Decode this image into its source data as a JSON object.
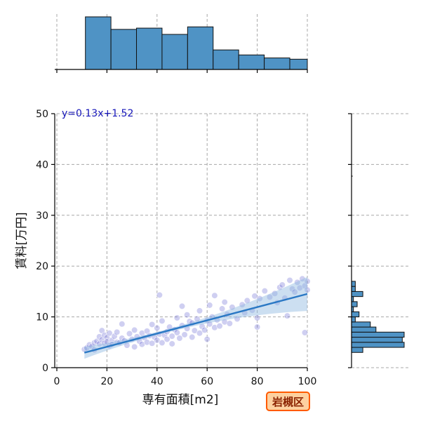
{
  "chart_data": {
    "type": "scatter",
    "xlabel": "専有面積[m2]",
    "ylabel": "賃料[万円]",
    "xlim": [
      0,
      100
    ],
    "ylim": [
      0,
      50
    ],
    "x_ticks": [
      0,
      20,
      40,
      60,
      80,
      100
    ],
    "y_ticks": [
      0,
      10,
      20,
      30,
      40,
      50
    ],
    "grid": true,
    "regression": {
      "equation": "y=0.13x+1.52",
      "slope": 0.13,
      "intercept": 1.52,
      "x_range": [
        11,
        100
      ],
      "confidence_band": true
    },
    "area_label": "岩槻区",
    "marginal_x_histogram": {
      "bin_edges": [
        11.4,
        21.6,
        31.8,
        42.0,
        52.2,
        62.4,
        72.6,
        82.8,
        93.0,
        100
      ],
      "counts": [
        21,
        16,
        16.5,
        14,
        17,
        7.8,
        5.8,
        4.6,
        4.1
      ]
    },
    "marginal_y_histogram": {
      "bin_edges": [
        3,
        4,
        5,
        6,
        7,
        8,
        9,
        10,
        11,
        12,
        13,
        14,
        15,
        16,
        17,
        18
      ],
      "counts": [
        6,
        28,
        27,
        28,
        13,
        10,
        2,
        4,
        1,
        3,
        1,
        6,
        2,
        2,
        0
      ]
    },
    "points": [
      {
        "x": 11,
        "y": 3.6
      },
      {
        "x": 12,
        "y": 3.9
      },
      {
        "x": 13,
        "y": 4.5
      },
      {
        "x": 14,
        "y": 4.2
      },
      {
        "x": 15,
        "y": 4.9
      },
      {
        "x": 15,
        "y": 3.5
      },
      {
        "x": 16,
        "y": 5.2
      },
      {
        "x": 17,
        "y": 4.7
      },
      {
        "x": 17,
        "y": 6.1
      },
      {
        "x": 18,
        "y": 5.5
      },
      {
        "x": 18,
        "y": 7.3
      },
      {
        "x": 19,
        "y": 6.4
      },
      {
        "x": 19,
        "y": 4.8
      },
      {
        "x": 20,
        "y": 5.9
      },
      {
        "x": 20,
        "y": 5.1
      },
      {
        "x": 21,
        "y": 6.8
      },
      {
        "x": 21,
        "y": 4.3
      },
      {
        "x": 22,
        "y": 5.4
      },
      {
        "x": 22,
        "y": 4.6
      },
      {
        "x": 23,
        "y": 6.2
      },
      {
        "x": 24,
        "y": 5.0
      },
      {
        "x": 24,
        "y": 7.0
      },
      {
        "x": 25,
        "y": 4.9
      },
      {
        "x": 26,
        "y": 5.8
      },
      {
        "x": 26,
        "y": 8.6
      },
      {
        "x": 27,
        "y": 5.3
      },
      {
        "x": 28,
        "y": 4.4
      },
      {
        "x": 29,
        "y": 6.7
      },
      {
        "x": 30,
        "y": 5.6
      },
      {
        "x": 31,
        "y": 4.1
      },
      {
        "x": 31,
        "y": 7.4
      },
      {
        "x": 32,
        "y": 6.1
      },
      {
        "x": 33,
        "y": 5.2
      },
      {
        "x": 34,
        "y": 6.8
      },
      {
        "x": 34,
        "y": 4.6
      },
      {
        "x": 35,
        "y": 5.9
      },
      {
        "x": 36,
        "y": 7.2
      },
      {
        "x": 36,
        "y": 5.0
      },
      {
        "x": 37,
        "y": 6.3
      },
      {
        "x": 38,
        "y": 4.8
      },
      {
        "x": 38,
        "y": 8.5
      },
      {
        "x": 39,
        "y": 6.0
      },
      {
        "x": 40,
        "y": 5.4
      },
      {
        "x": 40,
        "y": 7.8
      },
      {
        "x": 41,
        "y": 6.6
      },
      {
        "x": 41,
        "y": 14.3
      },
      {
        "x": 42,
        "y": 4.9
      },
      {
        "x": 42,
        "y": 9.2
      },
      {
        "x": 43,
        "y": 6.4
      },
      {
        "x": 44,
        "y": 7.1
      },
      {
        "x": 44,
        "y": 5.6
      },
      {
        "x": 45,
        "y": 8.0
      },
      {
        "x": 46,
        "y": 6.2
      },
      {
        "x": 46,
        "y": 4.7
      },
      {
        "x": 47,
        "y": 7.5
      },
      {
        "x": 48,
        "y": 6.9
      },
      {
        "x": 48,
        "y": 9.8
      },
      {
        "x": 49,
        "y": 5.8
      },
      {
        "x": 50,
        "y": 8.3
      },
      {
        "x": 50,
        "y": 12.1
      },
      {
        "x": 51,
        "y": 6.5
      },
      {
        "x": 52,
        "y": 7.7
      },
      {
        "x": 52,
        "y": 10.4
      },
      {
        "x": 53,
        "y": 9.1
      },
      {
        "x": 54,
        "y": 6.0
      },
      {
        "x": 54,
        "y": 8.8
      },
      {
        "x": 55,
        "y": 7.3
      },
      {
        "x": 56,
        "y": 9.6
      },
      {
        "x": 57,
        "y": 6.8
      },
      {
        "x": 57,
        "y": 11.2
      },
      {
        "x": 58,
        "y": 8.1
      },
      {
        "x": 59,
        "y": 7.4
      },
      {
        "x": 60,
        "y": 9.3
      },
      {
        "x": 60,
        "y": 5.6
      },
      {
        "x": 61,
        "y": 12.3
      },
      {
        "x": 61,
        "y": 8.6
      },
      {
        "x": 62,
        "y": 10.0
      },
      {
        "x": 63,
        "y": 7.9
      },
      {
        "x": 63,
        "y": 14.2
      },
      {
        "x": 64,
        "y": 9.4
      },
      {
        "x": 65,
        "y": 8.2
      },
      {
        "x": 66,
        "y": 11.6
      },
      {
        "x": 67,
        "y": 9.0
      },
      {
        "x": 67,
        "y": 12.9
      },
      {
        "x": 68,
        "y": 10.5
      },
      {
        "x": 69,
        "y": 8.7
      },
      {
        "x": 70,
        "y": 11.9
      },
      {
        "x": 72,
        "y": 9.6
      },
      {
        "x": 74,
        "y": 12.4
      },
      {
        "x": 75,
        "y": 10.8
      },
      {
        "x": 76,
        "y": 13.2
      },
      {
        "x": 78,
        "y": 11.3
      },
      {
        "x": 79,
        "y": 14.1
      },
      {
        "x": 80,
        "y": 9.8
      },
      {
        "x": 80,
        "y": 8.0
      },
      {
        "x": 81,
        "y": 13.6
      },
      {
        "x": 83,
        "y": 15.1
      },
      {
        "x": 85,
        "y": 13.9
      },
      {
        "x": 87,
        "y": 14.6
      },
      {
        "x": 88,
        "y": 12.8
      },
      {
        "x": 89,
        "y": 15.8
      },
      {
        "x": 90,
        "y": 16.3
      },
      {
        "x": 91,
        "y": 13.7
      },
      {
        "x": 92,
        "y": 10.2
      },
      {
        "x": 93,
        "y": 17.2
      },
      {
        "x": 94,
        "y": 15.5
      },
      {
        "x": 95,
        "y": 14.9
      },
      {
        "x": 96,
        "y": 16.8
      },
      {
        "x": 97,
        "y": 15.7
      },
      {
        "x": 98,
        "y": 17.5
      },
      {
        "x": 99,
        "y": 6.9
      },
      {
        "x": 99,
        "y": 16.1
      },
      {
        "x": 100,
        "y": 15.3
      },
      {
        "x": 100,
        "y": 17.0
      }
    ]
  }
}
